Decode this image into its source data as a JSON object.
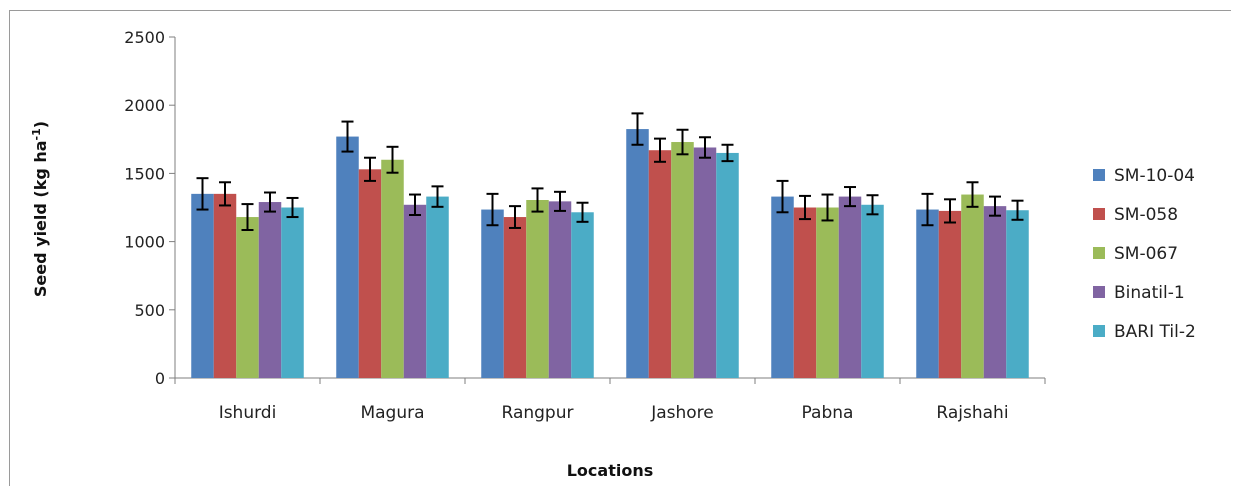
{
  "chart_data": {
    "type": "bar",
    "xlabel": "Locations",
    "ylabel": "Seed yield (kg ha -1)",
    "ylabel_main": "Seed yield (kg ha",
    "ylabel_sup": "-1",
    "ylabel_close": ")",
    "ylim": [
      0,
      2500
    ],
    "yticks": [
      0,
      500,
      1000,
      1500,
      2000,
      2500
    ],
    "grid": false,
    "legend_position": "right",
    "categories": [
      "Ishurdi",
      "Magura",
      "Rangpur",
      "Jashore",
      "Pabna",
      "Rajshahi"
    ],
    "series": [
      {
        "name": "SM-10-04",
        "color": "#4f81bd",
        "values": [
          1350,
          1770,
          1235,
          1825,
          1330,
          1235
        ],
        "errors": [
          115,
          110,
          115,
          115,
          115,
          115
        ]
      },
      {
        "name": "SM-058",
        "color": "#c0504d",
        "values": [
          1350,
          1530,
          1180,
          1670,
          1250,
          1225
        ],
        "errors": [
          85,
          85,
          80,
          85,
          85,
          85
        ]
      },
      {
        "name": "SM-067",
        "color": "#9bbb59",
        "values": [
          1180,
          1600,
          1305,
          1730,
          1250,
          1345
        ],
        "errors": [
          95,
          95,
          85,
          90,
          95,
          90
        ]
      },
      {
        "name": "Binatil-1",
        "color": "#8064a2",
        "values": [
          1290,
          1270,
          1295,
          1690,
          1330,
          1260
        ],
        "errors": [
          70,
          75,
          70,
          75,
          70,
          70
        ]
      },
      {
        "name": "BARI Til-2",
        "color": "#4bacc6",
        "values": [
          1250,
          1330,
          1215,
          1650,
          1270,
          1230
        ],
        "errors": [
          70,
          75,
          70,
          60,
          70,
          70
        ]
      }
    ]
  }
}
